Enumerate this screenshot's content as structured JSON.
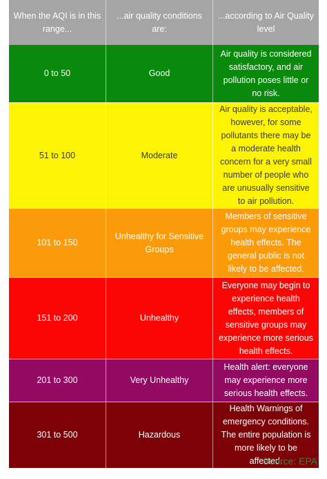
{
  "header": {
    "range": "When the AQI is in this range...",
    "conditions": "...air quality conditions are:",
    "level": "...according to Air Quality level"
  },
  "rows": [
    {
      "range": "0 to 50",
      "condition": "Good",
      "description": "Air quality is considered satisfactory, and air pollution poses little or no risk.",
      "color": "#0a8a0d",
      "text_color": "#ffffff"
    },
    {
      "range": "51 to 100",
      "condition": "Moderate",
      "description": "Air quality is acceptable, however, for some pollutants there may be a moderate health concern for a very small number of people who are unusually sensitive to air pollution.",
      "color": "#fdf404",
      "text_color": "#3c3c3c"
    },
    {
      "range": "101 to 150",
      "condition": "Unhealthy for Sensitive Groups",
      "description": "Members of sensitive groups may experience health effects. The general public is not likely to be affected.",
      "color": "#fb9b09",
      "text_color": "#ffffff"
    },
    {
      "range": "151 to 200",
      "condition": "Unhealthy",
      "description": "Everyone may begin to experience health effects, members of sensitive groups may experience more serious health effects.",
      "color": "#fb0505",
      "text_color": "#ffffff"
    },
    {
      "range": "201 to 300",
      "condition": "Very Unhealthy",
      "description": "Health alert: everyone may experience more serious health effects.",
      "color": "#930a63",
      "text_color": "#ffffff"
    },
    {
      "range": "301 to 500",
      "condition": "Hazardous",
      "description": "Health Warnings of emergency conditions. The entire population is more likely to be affected.",
      "color": "#7c0207",
      "text_color": "#ffffff"
    }
  ],
  "source": "Source: EPA"
}
